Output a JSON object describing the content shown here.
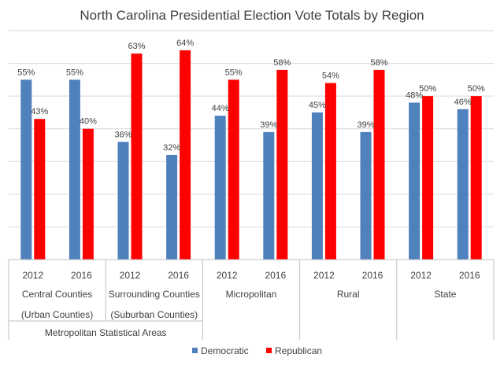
{
  "chart_data": {
    "type": "bar",
    "title": "North Carolina Presidential Election Vote Totals by Region",
    "xlabel": "",
    "ylabel": "",
    "ylim": [
      0,
      70
    ],
    "grid": true,
    "legend_position": "bottom",
    "categories": [
      "2012",
      "2016",
      "2012",
      "2016",
      "2012",
      "2016",
      "2012",
      "2016",
      "2012",
      "2016"
    ],
    "groups": [
      {
        "label_lines": [
          "Central Counties",
          "(Urban Counties)"
        ],
        "span": [
          0,
          1
        ]
      },
      {
        "label_lines": [
          "Surrounding Counties",
          "(Suburban Counties)"
        ],
        "span": [
          2,
          3
        ]
      },
      {
        "label_lines": [
          "Micropolitan"
        ],
        "span": [
          4,
          5
        ]
      },
      {
        "label_lines": [
          "Rural"
        ],
        "span": [
          6,
          7
        ]
      },
      {
        "label_lines": [
          "State"
        ],
        "span": [
          8,
          9
        ]
      }
    ],
    "super_groups": [
      {
        "label": "Metropolitan Statistical Areas",
        "span": [
          0,
          3
        ]
      }
    ],
    "series": [
      {
        "name": "Democratic",
        "color": "#4f81bd",
        "values": [
          55,
          55,
          36,
          32,
          44,
          39,
          45,
          39,
          48,
          46
        ],
        "labels": [
          "55%",
          "55%",
          "36%",
          "32%",
          "44%",
          "39%",
          "45%",
          "39%",
          "48%",
          "46%"
        ]
      },
      {
        "name": "Republican",
        "color": "#ff0000",
        "values": [
          43,
          40,
          63,
          64,
          55,
          58,
          54,
          58,
          50,
          50
        ],
        "labels": [
          "43%",
          "40%",
          "63%",
          "64%",
          "55%",
          "58%",
          "54%",
          "58%",
          "50%",
          "50%"
        ]
      }
    ]
  }
}
